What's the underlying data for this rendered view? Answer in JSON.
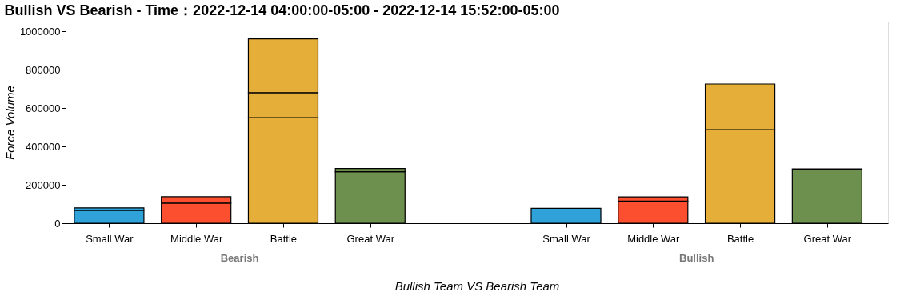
{
  "chart_data": {
    "type": "bar",
    "title": "Bullish VS Bearish - Time：2022-12-14 04:00:00-05:00 - 2022-12-14 15:52:00-05:00",
    "xlabel": "Bullish Team VS Bearish Team",
    "ylabel": "Force Volume",
    "categories": [
      "Small War",
      "Middle War",
      "Battle",
      "Great War",
      "Small War",
      "Middle War",
      "Battle",
      "Great War"
    ],
    "annotations": [
      "Bearish",
      "Bullish"
    ],
    "stacked": true,
    "series": [
      {
        "colors": [
          "#30a2da",
          "#fc4f30",
          "#e5ae38",
          "#6d904f",
          "#30a2da",
          "#fc4f30",
          "#e5ae38",
          "#6d904f"
        ],
        "values": [
          67000,
          105000,
          550000,
          268000,
          78000,
          115000,
          487000,
          278000
        ]
      },
      {
        "colors": [
          "#30a2da",
          "#fc4f30",
          "#e5ae38",
          "#6d904f",
          "#30a2da",
          "#fc4f30",
          "#e5ae38",
          "#6d904f"
        ],
        "values": [
          13000,
          33000,
          130000,
          17000,
          null,
          22000,
          238000,
          5000
        ]
      },
      {
        "colors": [
          "#30a2da",
          "#fc4f30",
          "#e5ae38",
          "#6d904f",
          "#30a2da",
          "#fc4f30",
          "#e5ae38",
          "#6d904f"
        ],
        "values": [
          null,
          null,
          280000,
          null,
          null,
          null,
          null,
          null
        ]
      }
    ],
    "ylim": [
      0,
      1050000
    ],
    "yticks": [
      0,
      200000,
      400000,
      600000,
      800000,
      1000000
    ],
    "grid": false
  }
}
